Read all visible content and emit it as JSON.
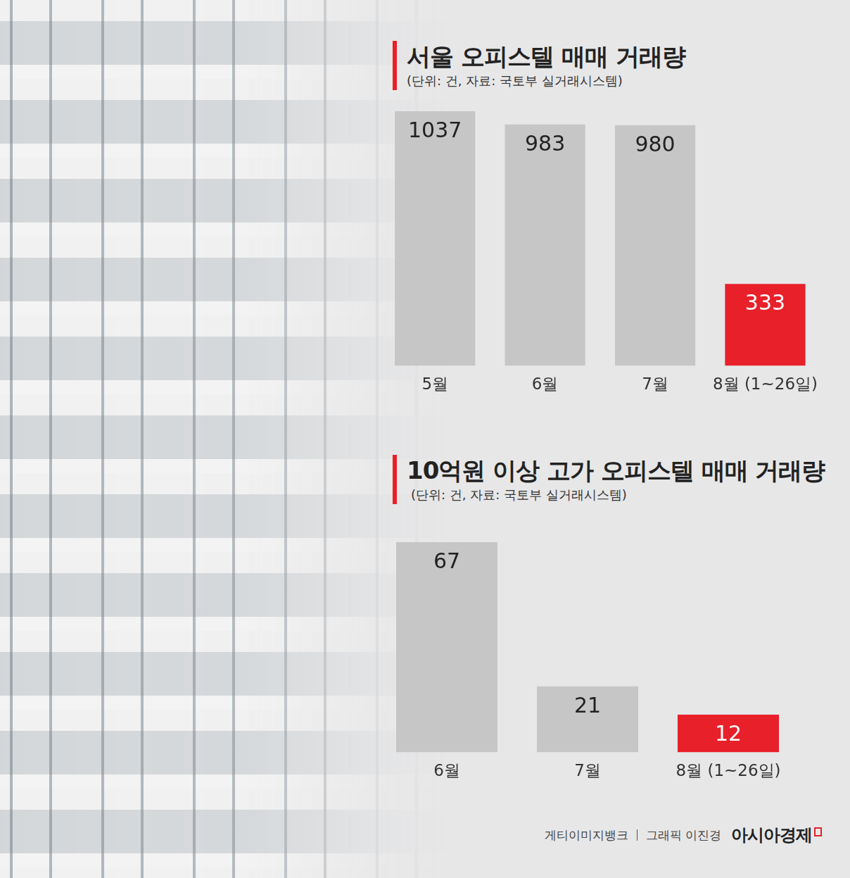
{
  "chart_data": [
    {
      "type": "bar",
      "title": "서울 오피스텔 매매 거래량",
      "subtitle": "(단위: 건, 자료: 국토부 실거래시스템)",
      "categories": [
        "5월",
        "6월",
        "7월",
        "8월 (1~26일)"
      ],
      "values": [
        1037,
        983,
        980,
        333
      ],
      "colors": [
        "#c6c6c6",
        "#c6c6c6",
        "#c6c6c6",
        "#e8202a"
      ],
      "ylim": [
        0,
        1037
      ],
      "grid": false,
      "tick_labels": "x",
      "data_labels": true
    },
    {
      "type": "bar",
      "title": "10억원 이상 고가 오피스텔 매매 거래량",
      "subtitle": "(단위: 건, 자료: 국토부 실거래시스템)",
      "categories": [
        "6월",
        "7월",
        "8월 (1~26일)"
      ],
      "values": [
        67,
        21,
        12
      ],
      "colors": [
        "#c6c6c6",
        "#c6c6c6",
        "#e8202a"
      ],
      "ylim": [
        0,
        67
      ],
      "grid": false,
      "tick_labels": "x",
      "data_labels": true
    }
  ],
  "footer": {
    "credit": "게티이미지뱅크",
    "graphic": "그래픽 이진경",
    "publisher": "아시아경제"
  }
}
